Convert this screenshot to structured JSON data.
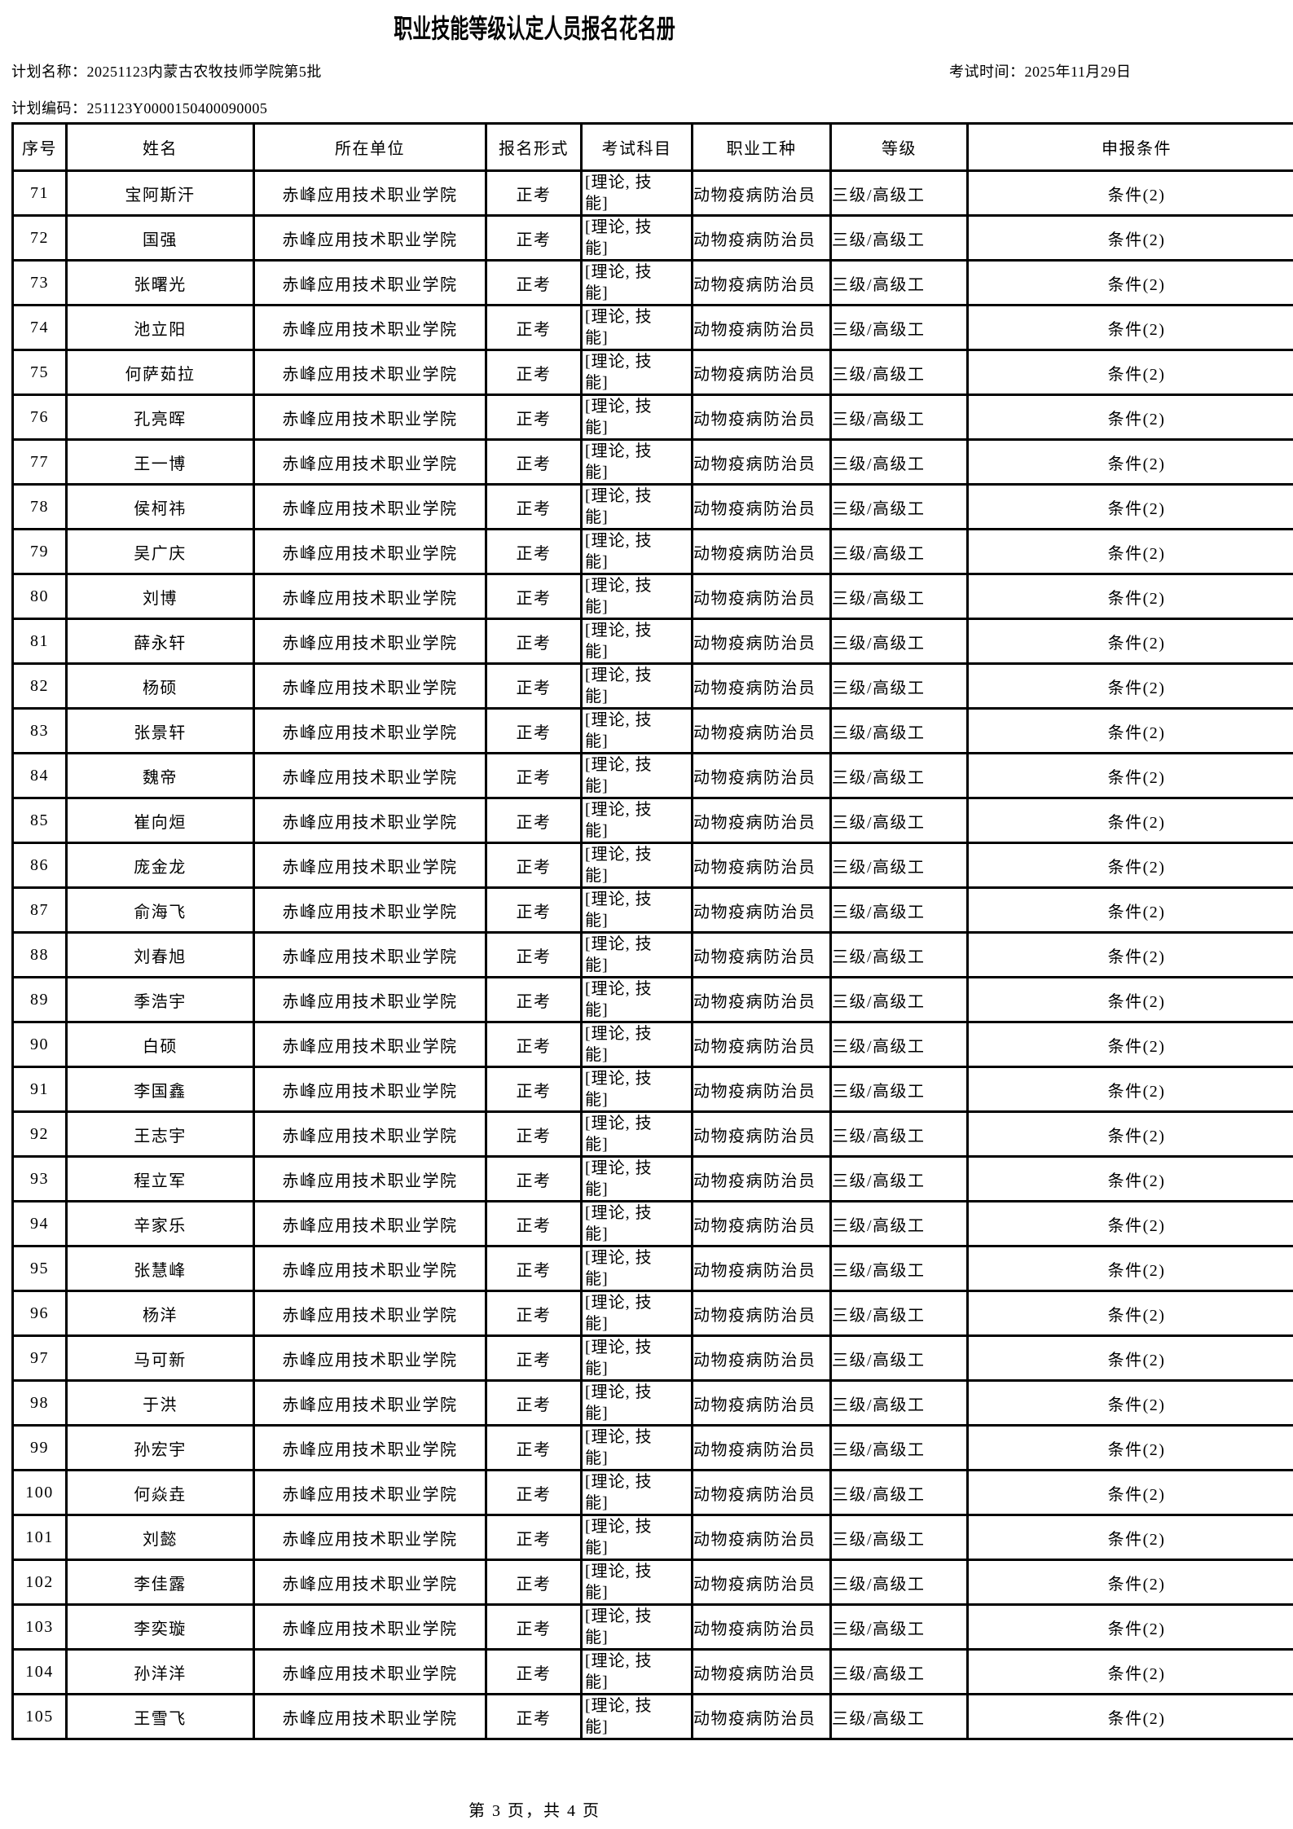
{
  "title": "职业技能等级认定人员报名花名册",
  "meta": {
    "plan_name_label": "计划名称：",
    "plan_name": "20251123内蒙古农牧技师学院第5批",
    "exam_time_label": "考试时间：",
    "exam_time": "2025年11月29日",
    "plan_code_label": "计划编码：",
    "plan_code": "251123Y0000150400090005"
  },
  "table": {
    "columns": [
      "序号",
      "姓名",
      "所在单位",
      "报名形式",
      "考试科目",
      "职业工种",
      "等级",
      "申报条件"
    ],
    "defaults": {
      "org": "赤峰应用技术职业学院",
      "form": "正考",
      "subjects": "[理论, 技能]",
      "occupation": "动物疫病防治员",
      "level": "三级/高级工",
      "condition": "条件(2)"
    },
    "rows": [
      {
        "no": "71",
        "name": "宝阿斯汗"
      },
      {
        "no": "72",
        "name": "国强"
      },
      {
        "no": "73",
        "name": "张曙光"
      },
      {
        "no": "74",
        "name": "池立阳"
      },
      {
        "no": "75",
        "name": "何萨茹拉"
      },
      {
        "no": "76",
        "name": "孔亮晖"
      },
      {
        "no": "77",
        "name": "王一博"
      },
      {
        "no": "78",
        "name": "侯柯祎"
      },
      {
        "no": "79",
        "name": "吴广庆"
      },
      {
        "no": "80",
        "name": "刘博"
      },
      {
        "no": "81",
        "name": "薛永轩"
      },
      {
        "no": "82",
        "name": "杨硕"
      },
      {
        "no": "83",
        "name": "张景轩"
      },
      {
        "no": "84",
        "name": "魏帝"
      },
      {
        "no": "85",
        "name": "崔向烜"
      },
      {
        "no": "86",
        "name": "庞金龙"
      },
      {
        "no": "87",
        "name": "俞海飞"
      },
      {
        "no": "88",
        "name": "刘春旭"
      },
      {
        "no": "89",
        "name": "季浩宇"
      },
      {
        "no": "90",
        "name": "白硕"
      },
      {
        "no": "91",
        "name": "李国鑫"
      },
      {
        "no": "92",
        "name": "王志宇"
      },
      {
        "no": "93",
        "name": "程立军"
      },
      {
        "no": "94",
        "name": "辛家乐"
      },
      {
        "no": "95",
        "name": "张慧峰"
      },
      {
        "no": "96",
        "name": "杨洋"
      },
      {
        "no": "97",
        "name": "马可新"
      },
      {
        "no": "98",
        "name": "于洪"
      },
      {
        "no": "99",
        "name": "孙宏宇"
      },
      {
        "no": "100",
        "name": "何焱垚"
      },
      {
        "no": "101",
        "name": "刘懿"
      },
      {
        "no": "102",
        "name": "李佳露"
      },
      {
        "no": "103",
        "name": "李奕璇"
      },
      {
        "no": "104",
        "name": "孙洋洋"
      },
      {
        "no": "105",
        "name": "王雪飞"
      }
    ]
  },
  "footer": {
    "page_info": "第 3 页，共 4 页"
  }
}
